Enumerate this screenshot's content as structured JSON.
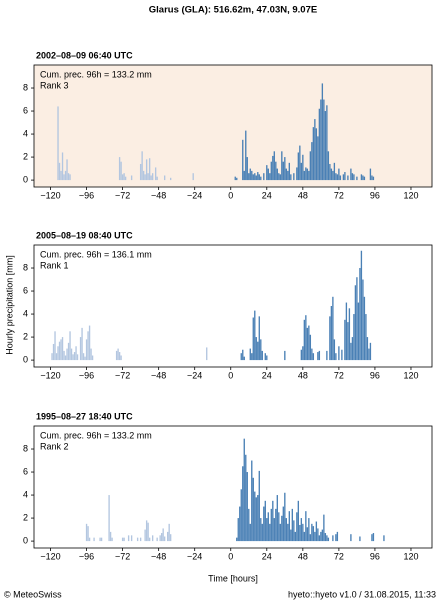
{
  "title": "Glarus (GLA): 516.62m, 47.03N, 9.07E",
  "y_label": "Hourly precipitation [mm]",
  "x_label": "Time [hours]",
  "footer_left": "© MeteoSwiss",
  "footer_right": "hyeto::hyeto v1.0 / 31.08.2015, 11:33",
  "chart_data": [
    {
      "type": "bar",
      "title": "2002–08–09 06:40 UTC",
      "annotations": [
        "Cum. prec. 96h = 133.2 mm",
        "Rank 3"
      ],
      "background": "#fbeee3",
      "xlim": [
        -131,
        134
      ],
      "ylim": [
        -0.6,
        10
      ],
      "xticks": [
        {
          "value": -120,
          "label": "−120"
        },
        {
          "value": -96,
          "label": "−96"
        },
        {
          "value": -72,
          "label": "−72"
        },
        {
          "value": -48,
          "label": "−48"
        },
        {
          "value": -24,
          "label": "−24"
        },
        0,
        24,
        48,
        72,
        96,
        120
      ],
      "yticks": [
        0,
        2,
        4,
        6,
        8
      ],
      "series": [
        {
          "color": "#b3c6e0",
          "x": [
            -115,
            -114,
            -113,
            -112,
            -111,
            -110,
            -109,
            -108,
            -107,
            -74,
            -73,
            -72,
            -71,
            -70,
            -66,
            -60,
            -59,
            -58,
            -57,
            -56,
            -55,
            -54,
            -53,
            -52,
            -50,
            -49,
            -44,
            -40,
            -25
          ],
          "values": [
            6.4,
            1.5,
            0.8,
            2.4,
            0.5,
            0.8,
            1.8,
            0.6,
            0.5,
            2.0,
            1.6,
            0.5,
            0.6,
            0.3,
            0.4,
            1.4,
            2.5,
            0.8,
            0.5,
            1.8,
            0.6,
            1.9,
            0.4,
            0.6,
            1.1,
            0.3,
            0.4,
            0.2,
            0.6
          ]
        },
        {
          "color": "#4a80b5",
          "x": [
            3,
            4,
            8,
            9,
            10,
            11,
            12,
            13,
            14,
            15,
            16,
            17,
            18,
            19,
            20,
            22,
            24,
            25,
            26,
            27,
            28,
            29,
            30,
            31,
            32,
            33,
            34,
            35,
            36,
            37,
            38,
            39,
            40,
            42,
            44,
            45,
            46,
            47,
            48,
            49,
            50,
            51,
            52,
            53,
            54,
            55,
            56,
            57,
            58,
            59,
            60,
            61,
            62,
            63,
            64,
            65,
            66,
            67,
            68,
            69,
            70,
            71,
            72,
            73,
            75,
            76,
            78,
            80,
            81,
            82,
            84,
            87,
            88,
            89,
            93,
            94,
            95
          ],
          "values": [
            0.3,
            0.2,
            3.5,
            0.8,
            4.3,
            2.0,
            0.6,
            1.0,
            0.8,
            0.5,
            0.6,
            0.4,
            0.7,
            0.5,
            0.3,
            0.6,
            1.3,
            1.0,
            0.6,
            1.6,
            2.1,
            2.5,
            1.6,
            1.0,
            0.6,
            0.5,
            2.5,
            1.6,
            2.0,
            1.0,
            0.8,
            1.5,
            0.5,
            0.6,
            1.1,
            2.4,
            3.0,
            1.5,
            2.2,
            0.8,
            1.1,
            1.0,
            0.8,
            2.5,
            3.3,
            4.6,
            5.3,
            4.5,
            3.8,
            6.2,
            7.0,
            8.4,
            7.0,
            6.0,
            6.5,
            2.5,
            1.4,
            1.0,
            0.8,
            1.5,
            0.6,
            0.5,
            1.0,
            0.4,
            0.5,
            0.7,
            0.4,
            1.0,
            0.6,
            0.5,
            0.3,
            0.5,
            0.4,
            0.3,
            1.0,
            0.4,
            0.3
          ]
        }
      ]
    },
    {
      "type": "bar",
      "title": "2005–08–19 08:40 UTC",
      "annotations": [
        "Cum. prec. 96h = 136.1 mm",
        "Rank 1"
      ],
      "background": "#ffffff",
      "xlim": [
        -131,
        134
      ],
      "ylim": [
        -0.6,
        10
      ],
      "xticks": [
        {
          "value": -120,
          "label": "−120"
        },
        {
          "value": -96,
          "label": "−96"
        },
        {
          "value": -72,
          "label": "−72"
        },
        {
          "value": -48,
          "label": "−48"
        },
        {
          "value": -24,
          "label": "−24"
        },
        0,
        24,
        48,
        72,
        96,
        120
      ],
      "yticks": [
        0,
        2,
        4,
        6,
        8
      ],
      "series": [
        {
          "color": "#b3c6e0",
          "x": [
            -119,
            -118,
            -117,
            -116,
            -115,
            -114,
            -113,
            -112,
            -111,
            -110,
            -109,
            -108,
            -107,
            -106,
            -105,
            -104,
            -103,
            -102,
            -100,
            -99,
            -98,
            -97,
            -96,
            -95,
            -94,
            -93,
            -92,
            -76,
            -75,
            -74,
            -73,
            -16
          ],
          "values": [
            0.6,
            1.4,
            2.5,
            0.6,
            1.2,
            1.6,
            1.8,
            2.0,
            0.8,
            0.4,
            1.0,
            1.5,
            2.5,
            1.0,
            0.5,
            0.7,
            1.2,
            0.5,
            2.0,
            2.8,
            0.6,
            0.3,
            1.8,
            2.5,
            3.0,
            1.0,
            0.4,
            0.8,
            1.0,
            0.7,
            0.4,
            1.1
          ]
        },
        {
          "color": "#4a80b5",
          "x": [
            7,
            8,
            9,
            13,
            14,
            15,
            16,
            17,
            18,
            19,
            20,
            21,
            23,
            24,
            36,
            47,
            48,
            49,
            50,
            51,
            52,
            53,
            54,
            55,
            58,
            59,
            64,
            66,
            67,
            68,
            69,
            70,
            72,
            74,
            76,
            77,
            78,
            79,
            80,
            81,
            82,
            83,
            84,
            85,
            86,
            87,
            88,
            89,
            90,
            91,
            92,
            93
          ],
          "values": [
            0.6,
            0.9,
            0.3,
            1.0,
            0.6,
            3.7,
            4.3,
            2.0,
            1.6,
            3.8,
            1.8,
            0.8,
            0.6,
            0.4,
            0.8,
            0.9,
            1.2,
            3.5,
            3.9,
            2.8,
            3.0,
            2.2,
            1.0,
            0.6,
            0.7,
            0.8,
            0.8,
            3.8,
            4.7,
            5.5,
            1.8,
            0.6,
            1.2,
            0.9,
            3.5,
            5.0,
            3.3,
            4.5,
            1.5,
            2.0,
            4.0,
            6.5,
            7.2,
            5.0,
            8.0,
            9.5,
            7.0,
            5.5,
            4.0,
            2.0,
            1.0,
            1.5
          ]
        }
      ]
    },
    {
      "type": "bar",
      "title": "1995–08–27 18:40 UTC",
      "annotations": [
        "Cum. prec. 96h = 133.2 mm",
        "Rank 2"
      ],
      "background": "#ffffff",
      "xlim": [
        -131,
        134
      ],
      "ylim": [
        -0.6,
        10
      ],
      "xticks": [
        {
          "value": -120,
          "label": "−120"
        },
        {
          "value": -96,
          "label": "−96"
        },
        {
          "value": -72,
          "label": "−72"
        },
        {
          "value": -48,
          "label": "−48"
        },
        {
          "value": -24,
          "label": "−24"
        },
        0,
        24,
        48,
        72,
        96,
        120
      ],
      "yticks": [
        0,
        2,
        4,
        6,
        8
      ],
      "series": [
        {
          "color": "#b3c6e0",
          "x": [
            -96,
            -95,
            -94,
            -91,
            -87,
            -86,
            -81,
            -80,
            -79,
            -72,
            -71,
            -68,
            -66,
            -62,
            -60,
            -57,
            -56,
            -55,
            -54,
            -52,
            -49,
            -47,
            -46,
            -45,
            -44,
            -42,
            -41,
            -40
          ],
          "values": [
            1.5,
            1.3,
            0.3,
            0.3,
            0.3,
            0.3,
            4.0,
            0.8,
            0.3,
            0.3,
            0.3,
            0.5,
            0.5,
            0.3,
            0.3,
            1.0,
            1.8,
            1.6,
            0.3,
            0.5,
            0.3,
            0.5,
            0.7,
            1.1,
            0.4,
            0.8,
            1.5,
            0.6
          ]
        },
        {
          "color": "#4a80b5",
          "x": [
            4,
            5,
            6,
            7,
            8,
            9,
            10,
            11,
            12,
            13,
            14,
            15,
            16,
            17,
            18,
            19,
            20,
            21,
            22,
            23,
            24,
            25,
            26,
            27,
            28,
            29,
            30,
            31,
            32,
            33,
            34,
            35,
            36,
            37,
            38,
            39,
            40,
            41,
            42,
            43,
            44,
            45,
            46,
            47,
            48,
            49,
            50,
            51,
            52,
            53,
            54,
            55,
            56,
            57,
            58,
            59,
            60,
            61,
            62,
            63,
            64,
            65,
            68,
            70,
            71,
            80,
            86,
            94,
            95,
            102
          ],
          "values": [
            0.3,
            2.0,
            3.0,
            4.5,
            6.5,
            8.9,
            7.5,
            6.0,
            2.8,
            1.5,
            7.0,
            5.5,
            4.3,
            3.8,
            4.0,
            6.1,
            2.0,
            1.5,
            3.0,
            3.5,
            2.0,
            2.5,
            1.5,
            2.8,
            3.5,
            2.0,
            2.8,
            4.0,
            2.5,
            1.5,
            2.2,
            3.0,
            4.2,
            2.0,
            1.5,
            2.6,
            1.0,
            2.8,
            1.8,
            0.8,
            2.5,
            3.5,
            1.4,
            2.0,
            1.5,
            0.8,
            2.6,
            1.2,
            2.0,
            0.6,
            1.5,
            1.3,
            0.8,
            1.7,
            1.1,
            0.5,
            0.8,
            1.0,
            2.3,
            0.7,
            0.5,
            0.3,
            0.5,
            0.6,
            0.8,
            0.6,
            0.4,
            0.6,
            0.7,
            0.5
          ]
        }
      ]
    }
  ]
}
